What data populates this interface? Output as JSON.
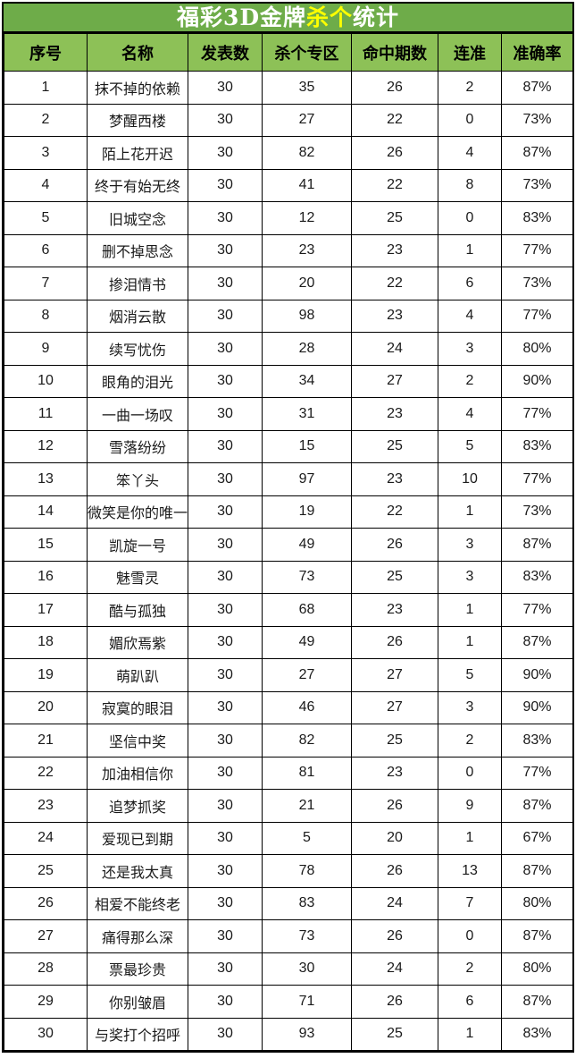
{
  "title": {
    "prefix": "福彩3D金牌",
    "highlight": "杀个",
    "suffix": "统计"
  },
  "colors": {
    "title_bg": "#6EAC49",
    "header_bg": "#8DC157",
    "highlight_text": "#FFFF00",
    "border": "#000000"
  },
  "table": {
    "columns": [
      {
        "key": "index",
        "label": "序号"
      },
      {
        "key": "name",
        "label": "名称"
      },
      {
        "key": "published",
        "label": "发表数"
      },
      {
        "key": "kill_zone",
        "label": "杀个专区"
      },
      {
        "key": "hit_periods",
        "label": "命中期数"
      },
      {
        "key": "streak",
        "label": "连准"
      },
      {
        "key": "accuracy",
        "label": "准确率"
      }
    ],
    "rows": [
      {
        "index": "1",
        "name": "抹不掉的依赖",
        "published": "30",
        "kill_zone": "35",
        "hit_periods": "26",
        "streak": "2",
        "accuracy": "87%"
      },
      {
        "index": "2",
        "name": "梦醒西楼",
        "published": "30",
        "kill_zone": "27",
        "hit_periods": "22",
        "streak": "0",
        "accuracy": "73%"
      },
      {
        "index": "3",
        "name": "陌上花开迟",
        "published": "30",
        "kill_zone": "82",
        "hit_periods": "26",
        "streak": "4",
        "accuracy": "87%"
      },
      {
        "index": "4",
        "name": "终于有始无终",
        "published": "30",
        "kill_zone": "41",
        "hit_periods": "22",
        "streak": "8",
        "accuracy": "73%"
      },
      {
        "index": "5",
        "name": "旧城空念",
        "published": "30",
        "kill_zone": "12",
        "hit_periods": "25",
        "streak": "0",
        "accuracy": "83%"
      },
      {
        "index": "6",
        "name": "删不掉思念",
        "published": "30",
        "kill_zone": "23",
        "hit_periods": "23",
        "streak": "1",
        "accuracy": "77%"
      },
      {
        "index": "7",
        "name": "掺泪情书",
        "published": "30",
        "kill_zone": "20",
        "hit_periods": "22",
        "streak": "6",
        "accuracy": "73%"
      },
      {
        "index": "8",
        "name": "烟消云散",
        "published": "30",
        "kill_zone": "98",
        "hit_periods": "23",
        "streak": "4",
        "accuracy": "77%"
      },
      {
        "index": "9",
        "name": "续写忧伤",
        "published": "30",
        "kill_zone": "28",
        "hit_periods": "24",
        "streak": "3",
        "accuracy": "80%"
      },
      {
        "index": "10",
        "name": "眼角的泪光",
        "published": "30",
        "kill_zone": "34",
        "hit_periods": "27",
        "streak": "2",
        "accuracy": "90%"
      },
      {
        "index": "11",
        "name": "一曲一场叹",
        "published": "30",
        "kill_zone": "31",
        "hit_periods": "23",
        "streak": "4",
        "accuracy": "77%"
      },
      {
        "index": "12",
        "name": "雪落纷纷",
        "published": "30",
        "kill_zone": "15",
        "hit_periods": "25",
        "streak": "5",
        "accuracy": "83%"
      },
      {
        "index": "13",
        "name": "笨丫头",
        "published": "30",
        "kill_zone": "97",
        "hit_periods": "23",
        "streak": "10",
        "accuracy": "77%"
      },
      {
        "index": "14",
        "name": "微笑是你的唯一",
        "published": "30",
        "kill_zone": "19",
        "hit_periods": "22",
        "streak": "1",
        "accuracy": "73%"
      },
      {
        "index": "15",
        "name": "凯旋一号",
        "published": "30",
        "kill_zone": "49",
        "hit_periods": "26",
        "streak": "3",
        "accuracy": "87%"
      },
      {
        "index": "16",
        "name": "魅雪灵",
        "published": "30",
        "kill_zone": "73",
        "hit_periods": "25",
        "streak": "3",
        "accuracy": "83%"
      },
      {
        "index": "17",
        "name": "酷与孤独",
        "published": "30",
        "kill_zone": "68",
        "hit_periods": "23",
        "streak": "1",
        "accuracy": "77%"
      },
      {
        "index": "18",
        "name": "媚欣焉紫",
        "published": "30",
        "kill_zone": "49",
        "hit_periods": "26",
        "streak": "1",
        "accuracy": "87%"
      },
      {
        "index": "19",
        "name": "萌趴趴",
        "published": "30",
        "kill_zone": "27",
        "hit_periods": "27",
        "streak": "5",
        "accuracy": "90%"
      },
      {
        "index": "20",
        "name": "寂寞的眼泪",
        "published": "30",
        "kill_zone": "46",
        "hit_periods": "27",
        "streak": "3",
        "accuracy": "90%"
      },
      {
        "index": "21",
        "name": "坚信中奖",
        "published": "30",
        "kill_zone": "82",
        "hit_periods": "25",
        "streak": "2",
        "accuracy": "83%"
      },
      {
        "index": "22",
        "name": "加油相信你",
        "published": "30",
        "kill_zone": "81",
        "hit_periods": "23",
        "streak": "0",
        "accuracy": "77%"
      },
      {
        "index": "23",
        "name": "追梦抓奖",
        "published": "30",
        "kill_zone": "21",
        "hit_periods": "26",
        "streak": "9",
        "accuracy": "87%"
      },
      {
        "index": "24",
        "name": "爱现已到期",
        "published": "30",
        "kill_zone": "5",
        "hit_periods": "20",
        "streak": "1",
        "accuracy": "67%"
      },
      {
        "index": "25",
        "name": "还是我太真",
        "published": "30",
        "kill_zone": "78",
        "hit_periods": "26",
        "streak": "13",
        "accuracy": "87%"
      },
      {
        "index": "26",
        "name": "相爱不能终老",
        "published": "30",
        "kill_zone": "83",
        "hit_periods": "24",
        "streak": "7",
        "accuracy": "80%"
      },
      {
        "index": "27",
        "name": "痛得那么深",
        "published": "30",
        "kill_zone": "73",
        "hit_periods": "26",
        "streak": "0",
        "accuracy": "87%"
      },
      {
        "index": "28",
        "name": "票最珍贵",
        "published": "30",
        "kill_zone": "30",
        "hit_periods": "24",
        "streak": "2",
        "accuracy": "80%"
      },
      {
        "index": "29",
        "name": "你别皱眉",
        "published": "30",
        "kill_zone": "71",
        "hit_periods": "26",
        "streak": "6",
        "accuracy": "87%"
      },
      {
        "index": "30",
        "name": "与奖打个招呼",
        "published": "30",
        "kill_zone": "93",
        "hit_periods": "25",
        "streak": "1",
        "accuracy": "83%"
      }
    ]
  }
}
